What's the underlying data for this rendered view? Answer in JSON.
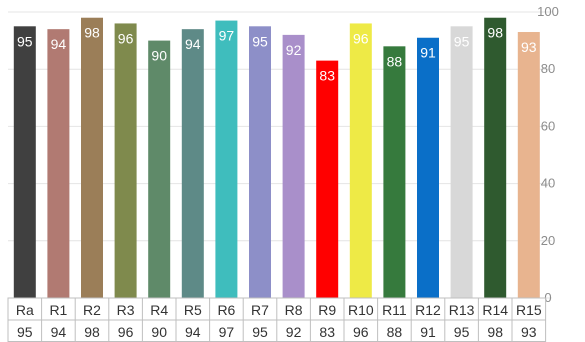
{
  "chart_data": {
    "type": "bar",
    "categories": [
      "Ra",
      "R1",
      "R2",
      "R3",
      "R4",
      "R5",
      "R6",
      "R7",
      "R8",
      "R9",
      "R10",
      "R11",
      "R12",
      "R13",
      "R14",
      "R15"
    ],
    "values": [
      95,
      94,
      98,
      96,
      90,
      94,
      97,
      95,
      92,
      83,
      96,
      88,
      91,
      95,
      98,
      93
    ],
    "colors": [
      "#404040",
      "#b17a72",
      "#9b7e58",
      "#7f8a4d",
      "#5f8a69",
      "#5e8a87",
      "#3fbdbd",
      "#8d8fc8",
      "#a98fca",
      "#ff0000",
      "#eeea46",
      "#367a3d",
      "#0a6fc8",
      "#d8d8d8",
      "#2f5a2f",
      "#e8b48f"
    ],
    "yticks": [
      0,
      20,
      40,
      60,
      80,
      100
    ],
    "ylim": [
      0,
      100
    ],
    "grid": true,
    "data_table": true,
    "title": "",
    "xlabel": "",
    "ylabel": ""
  }
}
